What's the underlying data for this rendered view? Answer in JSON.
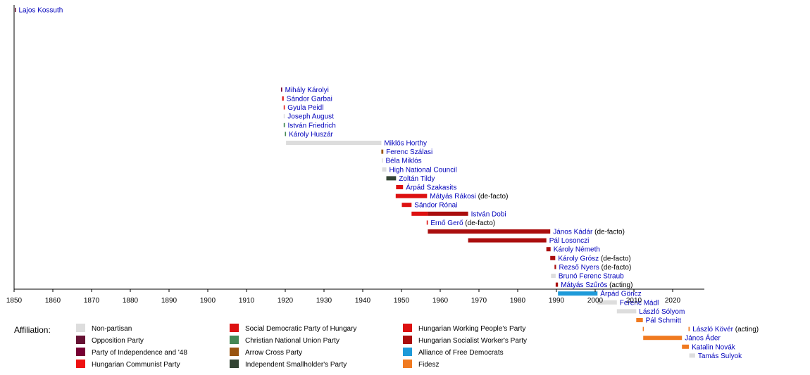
{
  "chart_data": {
    "type": "timeline",
    "xlim": [
      1850,
      2028
    ],
    "x_ticks": [
      1850,
      1860,
      1870,
      1880,
      1890,
      1900,
      1910,
      1920,
      1930,
      1940,
      1950,
      1960,
      1970,
      1980,
      1990,
      2000,
      2010,
      2020
    ],
    "grid": false,
    "legend": {
      "title": "Affiliation:",
      "position": "bottom",
      "items": [
        {
          "label": "Non-partisan",
          "color": "#dddddd"
        },
        {
          "label": "Opposition Party",
          "color": "#661133"
        },
        {
          "label": "Party of Independence and '48",
          "color": "#770033"
        },
        {
          "label": "Hungarian Communist Party",
          "color": "#ee1111"
        },
        {
          "label": "Social Democratic Party of Hungary",
          "color": "#dd1111"
        },
        {
          "label": "Christian National Union Party",
          "color": "#448855"
        },
        {
          "label": "Arrow Cross Party",
          "color": "#995511"
        },
        {
          "label": "Independent Smallholder's Party",
          "color": "#334433"
        },
        {
          "label": "Hungarian Working People's Party",
          "color": "#dd1111"
        },
        {
          "label": "Hungarian Socialist Worker's Party",
          "color": "#aa0e0e"
        },
        {
          "label": "Alliance of Free Democrats",
          "color": "#1e9ad9"
        },
        {
          "label": "Fidesz",
          "color": "#f07a20"
        }
      ]
    },
    "rows": [
      {
        "name": "Lajos Kossuth",
        "note": "",
        "segments": [
          {
            "start": 1849.3,
            "end": 1849.7,
            "color": "#661133"
          }
        ]
      },
      {
        "name": "Mihály Károlyi",
        "note": "",
        "segments": [
          {
            "start": 1918.9,
            "end": 1919.2,
            "color": "#770033"
          }
        ]
      },
      {
        "name": "Sándor Garbai",
        "note": "",
        "segments": [
          {
            "start": 1919.2,
            "end": 1919.6,
            "color": "#dd1111"
          }
        ]
      },
      {
        "name": "Gyula Peidl",
        "note": "",
        "segments": [
          {
            "start": 1919.6,
            "end": 1919.7,
            "color": "#dd1111"
          }
        ]
      },
      {
        "name": "Joseph August",
        "note": "",
        "segments": [
          {
            "start": 1919.6,
            "end": 1919.7,
            "color": "#dddddd"
          }
        ]
      },
      {
        "name": "István Friedrich",
        "note": "",
        "segments": [
          {
            "start": 1919.6,
            "end": 1919.9,
            "color": "#448855"
          }
        ]
      },
      {
        "name": "Károly Huszár",
        "note": "",
        "segments": [
          {
            "start": 1919.9,
            "end": 1920.2,
            "color": "#448855"
          }
        ]
      },
      {
        "name": "Miklós Horthy",
        "note": "",
        "segments": [
          {
            "start": 1920.2,
            "end": 1944.8,
            "color": "#dddddd"
          }
        ]
      },
      {
        "name": "Ferenc Szálasi",
        "note": "",
        "segments": [
          {
            "start": 1944.8,
            "end": 1945.3,
            "color": "#995511"
          }
        ]
      },
      {
        "name": "Béla Miklós",
        "note": "",
        "segments": [
          {
            "start": 1944.9,
            "end": 1945.1,
            "color": "#dddddd"
          }
        ]
      },
      {
        "name": "High National Council",
        "note": "",
        "segments": [
          {
            "start": 1945.0,
            "end": 1946.1,
            "color": "#dddddd"
          }
        ]
      },
      {
        "name": "Zoltán Tildy",
        "note": "",
        "segments": [
          {
            "start": 1946.1,
            "end": 1948.6,
            "color": "#334433"
          }
        ]
      },
      {
        "name": "Árpád Szakasits",
        "note": "",
        "segments": [
          {
            "start": 1948.6,
            "end": 1950.4,
            "color": "#dd1111"
          }
        ]
      },
      {
        "name": "Mátyás Rákosi",
        "note": "(de-facto)",
        "segments": [
          {
            "start": 1948.5,
            "end": 1956.6,
            "color": "#dd1111"
          }
        ]
      },
      {
        "name": "Sándor Rónai",
        "note": "",
        "segments": [
          {
            "start": 1950.1,
            "end": 1952.6,
            "color": "#dd1111"
          }
        ]
      },
      {
        "name": "István Dobi",
        "note": "",
        "segments": [
          {
            "start": 1952.6,
            "end": 1956.8,
            "color": "#dd1111"
          },
          {
            "start": 1956.8,
            "end": 1967.2,
            "color": "#aa0e0e"
          }
        ]
      },
      {
        "name": "Ernő Gerő",
        "note": "(de-facto)",
        "segments": [
          {
            "start": 1956.5,
            "end": 1956.8,
            "color": "#dd1111"
          }
        ]
      },
      {
        "name": "János Kádár",
        "note": "(de-facto)",
        "segments": [
          {
            "start": 1956.8,
            "end": 1988.4,
            "color": "#aa0e0e"
          }
        ]
      },
      {
        "name": "Pál Losonczi",
        "note": "",
        "segments": [
          {
            "start": 1967.2,
            "end": 1987.4,
            "color": "#aa0e0e"
          }
        ]
      },
      {
        "name": "Károly Németh",
        "note": "",
        "segments": [
          {
            "start": 1987.4,
            "end": 1988.5,
            "color": "#aa0e0e"
          }
        ]
      },
      {
        "name": "Károly Grósz",
        "note": "(de-facto)",
        "segments": [
          {
            "start": 1988.4,
            "end": 1989.7,
            "color": "#aa0e0e"
          }
        ]
      },
      {
        "name": "Rezső Nyers",
        "note": "(de-facto)",
        "segments": [
          {
            "start": 1989.5,
            "end": 1989.9,
            "color": "#aa0e0e"
          }
        ]
      },
      {
        "name": "Brunó Ferenc Straub",
        "note": "",
        "segments": [
          {
            "start": 1988.6,
            "end": 1989.8,
            "color": "#dddddd"
          }
        ]
      },
      {
        "name": "Mátyás Szűrös",
        "note": "(acting)",
        "segments": [
          {
            "start": 1989.8,
            "end": 1990.4,
            "color": "#aa0e0e"
          }
        ]
      },
      {
        "name": "Árpád Göncz",
        "note": "",
        "segments": [
          {
            "start": 1990.4,
            "end": 2000.6,
            "color": "#1e9ad9"
          }
        ]
      },
      {
        "name": "Ferenc Mádl",
        "note": "",
        "segments": [
          {
            "start": 2000.6,
            "end": 2005.6,
            "color": "#dddddd"
          }
        ]
      },
      {
        "name": "László Sólyom",
        "note": "",
        "segments": [
          {
            "start": 2005.6,
            "end": 2010.6,
            "color": "#dddddd"
          }
        ]
      },
      {
        "name": "Pál Schmitt",
        "note": "",
        "segments": [
          {
            "start": 2010.6,
            "end": 2012.3,
            "color": "#f07a20"
          }
        ]
      },
      {
        "name": "László Kövér",
        "note": "(acting)",
        "segments": [
          {
            "start": 2012.3,
            "end": 2012.5,
            "color": "#f07a20"
          },
          {
            "start": 2024.1,
            "end": 2024.4,
            "color": "#f07a20"
          }
        ]
      },
      {
        "name": "János Áder",
        "note": "",
        "segments": [
          {
            "start": 2012.4,
            "end": 2022.4,
            "color": "#f07a20"
          }
        ]
      },
      {
        "name": "Katalin Novák",
        "note": "",
        "segments": [
          {
            "start": 2022.4,
            "end": 2024.2,
            "color": "#f07a20"
          }
        ]
      },
      {
        "name": "Tamás Sulyok",
        "note": "",
        "segments": [
          {
            "start": 2024.3,
            "end": 2025.8,
            "color": "#dddddd"
          }
        ]
      }
    ]
  }
}
